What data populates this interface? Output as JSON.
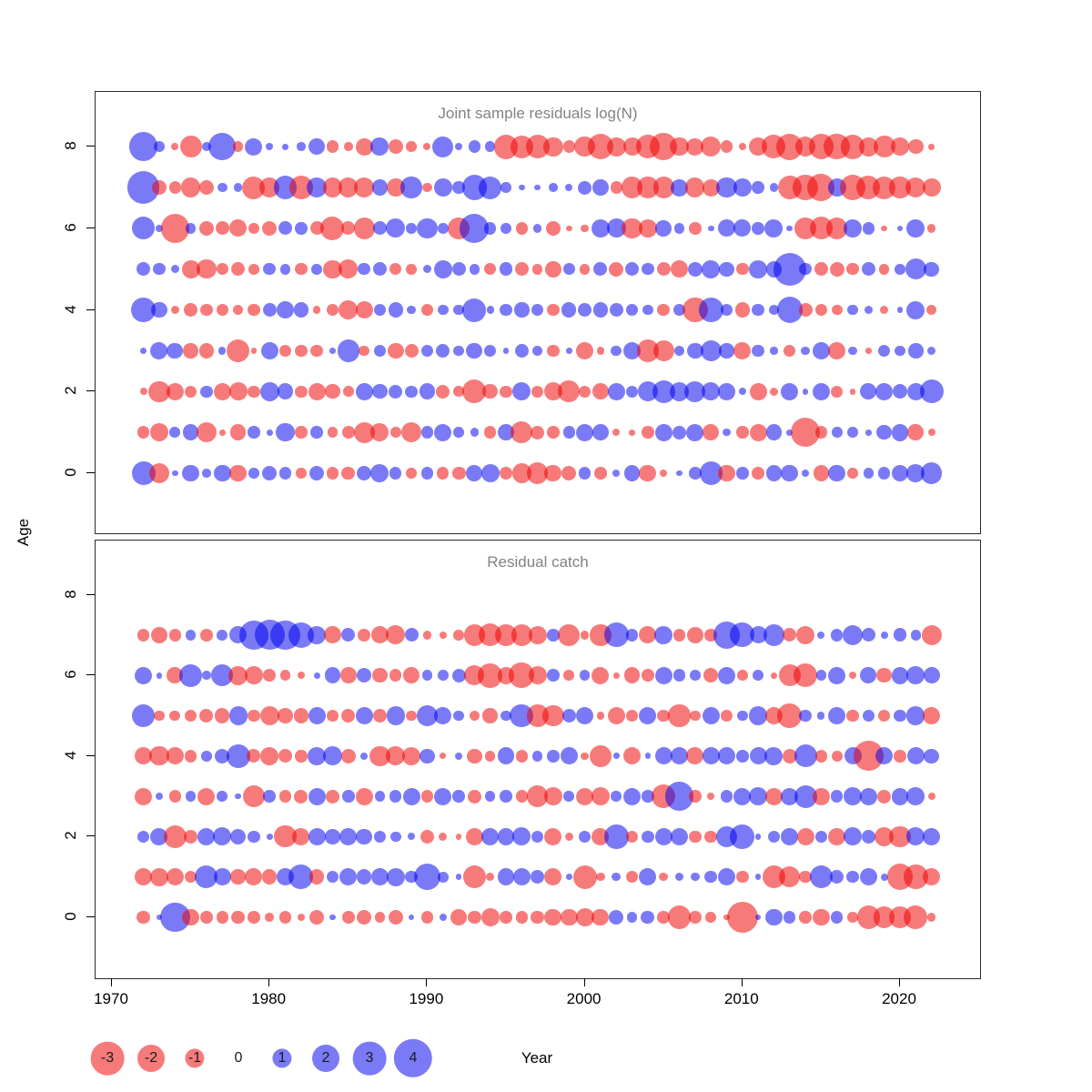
{
  "figure": {
    "ylabel": "Age",
    "xlabel": "Year"
  },
  "chart_data": {
    "type": "bubble",
    "xlabel": "Year",
    "ylabel": "Age",
    "x_ticks": [
      1970,
      1980,
      1990,
      2000,
      2010,
      2020
    ],
    "y_ticks": [
      0,
      2,
      4,
      6,
      8
    ],
    "xlim": [
      1969,
      2025
    ],
    "years_start": 1972,
    "years_end": 2022,
    "colors": {
      "negative": "rgba(240,0,0,0.52)",
      "positive": "rgba(0,0,240,0.52)",
      "negative_solid": "#f87b7b",
      "positive_solid": "#7b7bf8"
    },
    "legend": {
      "values": [
        -3,
        -2,
        -1,
        0,
        1,
        2,
        3,
        4
      ]
    },
    "panels": [
      {
        "title": "Joint sample residuals log(N)",
        "ages": [
          0,
          1,
          2,
          3,
          4,
          5,
          6,
          7,
          8
        ],
        "series": [
          {
            "age": 8,
            "values": [
              2.2,
              0.3,
              -0.15,
              -1.3,
              0.25,
              2.0,
              -0.3,
              0.8,
              0.15,
              0.1,
              0.2,
              0.7,
              -0.4,
              -0.2,
              -0.8,
              0.9,
              -0.6,
              -0.3,
              -0.15,
              1.2,
              0.15,
              0.4,
              0.3,
              -1.6,
              -1.4,
              -1.5,
              -1.0,
              -0.4,
              -1.1,
              -1.8,
              -1.0,
              -0.9,
              -1.5,
              -2.0,
              -0.9,
              -0.8,
              -1.1,
              -0.4,
              -0.15,
              -0.9,
              -1.5,
              -1.9,
              -1.1,
              -1.7,
              -1.8,
              -1.6,
              -1.0,
              -1.3,
              -0.9,
              -0.6,
              -0.1
            ]
          },
          {
            "age": 7,
            "values": [
              2.8,
              -0.6,
              -0.4,
              -1.0,
              -0.6,
              0.25,
              0.2,
              -1.4,
              -1.1,
              1.5,
              -1.5,
              1.1,
              -1.0,
              -1.0,
              -1.1,
              0.7,
              -0.9,
              1.2,
              -0.25,
              0.9,
              0.4,
              1.7,
              1.4,
              0.3,
              0.1,
              0.1,
              0.2,
              0.15,
              0.5,
              0.7,
              -0.4,
              -1.2,
              -1.3,
              -1.2,
              0.8,
              -1.0,
              -0.8,
              1.1,
              0.9,
              0.4,
              0.2,
              -1.5,
              -1.7,
              -2.0,
              0.9,
              -1.8,
              -1.5,
              -1.4,
              -1.2,
              -1.1,
              -0.9
            ]
          },
          {
            "age": 6,
            "values": [
              1.4,
              0.15,
              -2.2,
              0.3,
              -0.6,
              -0.5,
              -0.8,
              -0.3,
              -0.6,
              0.5,
              0.4,
              -0.5,
              -1.5,
              -0.5,
              -1.2,
              0.5,
              1.0,
              0.3,
              1.1,
              0.3,
              -1.3,
              2.3,
              0.4,
              0.3,
              -0.4,
              0.2,
              -0.6,
              -0.1,
              -0.15,
              0.9,
              1.0,
              -1.1,
              -0.9,
              0.7,
              0.3,
              -0.4,
              0.1,
              0.8,
              0.8,
              0.4,
              0.9,
              0.1,
              -1.3,
              -1.4,
              -1.2,
              0.9,
              0.4,
              -0.1,
              0.1,
              0.9,
              -0.2
            ]
          },
          {
            "age": 5,
            "values": [
              0.5,
              0.4,
              0.2,
              -0.9,
              -1.0,
              -0.4,
              -0.5,
              -0.3,
              0.4,
              0.3,
              -0.4,
              0.3,
              -0.9,
              -1.0,
              0.4,
              0.5,
              -0.4,
              -0.3,
              0.2,
              0.9,
              0.5,
              0.3,
              -0.4,
              0.5,
              -0.5,
              -0.3,
              -0.7,
              0.4,
              -0.3,
              0.5,
              -0.6,
              0.5,
              0.4,
              -0.5,
              -0.8,
              0.6,
              0.9,
              0.6,
              -0.4,
              0.9,
              0.7,
              2.9,
              0.4,
              -0.5,
              -0.6,
              -0.4,
              0.5,
              -0.3,
              0.3,
              1.2,
              0.6
            ]
          },
          {
            "age": 4,
            "values": [
              1.6,
              0.7,
              -0.2,
              -0.5,
              -0.4,
              -0.4,
              -0.3,
              -0.4,
              0.5,
              0.8,
              0.6,
              -0.15,
              -0.4,
              -1.0,
              -0.8,
              0.4,
              0.6,
              0.2,
              -0.4,
              0.3,
              0.3,
              1.5,
              0.15,
              0.4,
              0.6,
              0.4,
              -0.4,
              0.6,
              0.5,
              0.6,
              0.5,
              0.4,
              0.3,
              -0.4,
              0.4,
              -1.7,
              1.6,
              0.4,
              -0.6,
              0.4,
              0.3,
              1.8,
              -0.5,
              -0.4,
              -0.3,
              0.3,
              0.2,
              -0.2,
              0.1,
              0.9,
              -0.3
            ]
          },
          {
            "age": 3,
            "values": [
              0.1,
              0.8,
              0.7,
              -0.6,
              -0.6,
              0.15,
              -1.4,
              -0.1,
              0.8,
              -0.4,
              -0.4,
              -0.4,
              0.1,
              1.3,
              -0.3,
              0.4,
              -0.7,
              -0.5,
              0.4,
              0.5,
              0.3,
              0.7,
              0.4,
              0.1,
              0.5,
              0.3,
              -0.4,
              0.1,
              -0.8,
              -0.15,
              0.3,
              0.8,
              -1.3,
              -1.2,
              0.3,
              0.7,
              1.2,
              0.6,
              -0.8,
              0.4,
              0.15,
              -0.4,
              0.2,
              0.8,
              -0.8,
              0.2,
              -0.1,
              0.4,
              0.3,
              0.6,
              0.2
            ]
          },
          {
            "age": 2,
            "values": [
              -0.15,
              -1.2,
              -0.8,
              -0.4,
              0.4,
              -0.8,
              -0.9,
              -0.4,
              1.0,
              0.7,
              -0.4,
              -0.8,
              -0.6,
              -0.3,
              0.8,
              0.6,
              0.5,
              0.4,
              0.7,
              -0.5,
              -0.3,
              -1.5,
              -0.6,
              -0.4,
              0.9,
              -0.4,
              -0.9,
              -1.3,
              -0.4,
              -0.7,
              0.8,
              0.4,
              1.1,
              1.4,
              1.0,
              1.2,
              0.9,
              0.8,
              0.15,
              -0.8,
              -0.2,
              0.8,
              0.1,
              0.8,
              -0.4,
              -0.1,
              0.7,
              0.8,
              0.6,
              0.8,
              1.5
            ]
          },
          {
            "age": 1,
            "values": [
              -0.4,
              -0.9,
              0.3,
              0.7,
              -1.1,
              -0.1,
              -0.7,
              0.4,
              0.1,
              0.9,
              -0.4,
              0.4,
              -0.3,
              -0.4,
              -1.2,
              -0.9,
              -0.3,
              -1.1,
              0.4,
              0.8,
              0.3,
              0.2,
              -0.4,
              0.7,
              -1.3,
              -0.5,
              -0.4,
              0.4,
              0.8,
              0.7,
              -0.15,
              -0.1,
              -0.4,
              0.8,
              0.5,
              0.8,
              -0.7,
              0.15,
              -0.4,
              -0.8,
              0.7,
              0.1,
              -2.3,
              -0.4,
              0.3,
              0.3,
              0.1,
              0.6,
              0.8,
              -0.7,
              -0.15
            ]
          },
          {
            "age": 0,
            "values": [
              1.5,
              -1.1,
              0.1,
              0.8,
              0.2,
              0.8,
              -0.8,
              0.3,
              0.6,
              0.4,
              -0.3,
              0.6,
              -0.4,
              -0.5,
              0.6,
              0.9,
              0.4,
              -0.3,
              0.4,
              -0.4,
              -0.5,
              0.7,
              0.9,
              -0.5,
              -1.0,
              -1.2,
              -0.8,
              -0.6,
              0.4,
              -0.4,
              0.15,
              0.7,
              -0.8,
              -0.15,
              0.1,
              0.4,
              1.4,
              -0.8,
              0.4,
              -0.4,
              0.7,
              0.8,
              0.15,
              -0.7,
              0.8,
              -0.3,
              0.3,
              0.4,
              0.7,
              0.9,
              1.2
            ]
          }
        ]
      },
      {
        "title": "Residual catch",
        "ages": [
          0,
          1,
          2,
          3,
          4,
          5,
          6,
          7
        ],
        "series": [
          {
            "age": 7,
            "values": [
              -0.4,
              -0.7,
              -0.4,
              0.3,
              -0.4,
              0.3,
              0.8,
              2.2,
              2.4,
              2.3,
              1.8,
              0.9,
              -0.8,
              0.5,
              -0.4,
              -0.8,
              -1.0,
              0.5,
              -0.2,
              -0.15,
              -0.3,
              -1.2,
              -1.4,
              -1.3,
              -1.2,
              -0.9,
              0.4,
              -1.3,
              -0.2,
              -1.2,
              1.6,
              0.4,
              -0.8,
              0.9,
              -0.4,
              -0.7,
              -0.4,
              1.9,
              1.6,
              0.8,
              1.2,
              -0.5,
              -0.9,
              0.15,
              0.4,
              1.1,
              0.5,
              0.15,
              0.5,
              0.3,
              -1.1
            ]
          },
          {
            "age": 6,
            "values": [
              0.8,
              0.1,
              -0.7,
              1.4,
              0.2,
              1.3,
              -1.0,
              -0.9,
              -0.4,
              -0.3,
              -0.15,
              0.1,
              0.7,
              -0.7,
              0.6,
              -0.6,
              -0.4,
              -0.7,
              0.3,
              0.3,
              0.5,
              -1.1,
              -1.6,
              -0.8,
              -1.7,
              -0.9,
              0.4,
              -0.3,
              0.3,
              -0.8,
              -0.1,
              -0.7,
              -0.4,
              0.8,
              0.4,
              0.3,
              -0.6,
              0.8,
              -0.3,
              0.3,
              -0.1,
              -1.3,
              -1.5,
              0.3,
              0.8,
              -0.15,
              0.7,
              -0.6,
              0.8,
              0.9,
              0.7
            ]
          },
          {
            "age": 5,
            "values": [
              1.4,
              -0.3,
              -0.3,
              -0.4,
              -0.5,
              -0.6,
              0.9,
              -0.4,
              -1.0,
              -0.6,
              -0.6,
              0.8,
              -0.4,
              -0.5,
              0.8,
              -0.5,
              0.9,
              -0.3,
              1.2,
              0.8,
              0.3,
              -0.3,
              -0.6,
              0.3,
              1.5,
              -1.3,
              -1.2,
              0.5,
              0.8,
              -0.15,
              -0.8,
              -0.4,
              0.8,
              -0.4,
              -1.3,
              -0.3,
              0.8,
              -0.4,
              0.3,
              0.9,
              -0.8,
              -1.6,
              0.4,
              0.15,
              0.8,
              -0.4,
              0.4,
              -0.4,
              0.4,
              0.9,
              -0.8
            ]
          },
          {
            "age": 4,
            "values": [
              -0.8,
              -1.0,
              -0.8,
              -0.4,
              0.3,
              0.6,
              1.5,
              -0.5,
              -0.9,
              -0.5,
              -0.4,
              0.9,
              1.0,
              -0.6,
              0.15,
              -1.1,
              -1.0,
              -0.9,
              0.6,
              -0.1,
              0.15,
              -0.6,
              -0.3,
              0.8,
              -0.4,
              0.3,
              0.4,
              0.8,
              -0.15,
              -1.3,
              0.1,
              -0.8,
              0.1,
              0.8,
              0.8,
              -0.8,
              0.8,
              0.8,
              0.4,
              0.8,
              0.9,
              -0.6,
              1.4,
              -0.4,
              -0.3,
              0.8,
              -2.4,
              0.8,
              -0.4,
              0.8,
              0.6
            ]
          },
          {
            "age": 3,
            "values": [
              -0.8,
              0.15,
              -0.4,
              0.3,
              -0.8,
              0.3,
              0.1,
              -1.3,
              0.4,
              -0.4,
              -0.5,
              0.8,
              -0.5,
              0.4,
              -0.8,
              0.3,
              0.4,
              0.8,
              -0.4,
              0.8,
              0.4,
              -0.5,
              0.3,
              0.4,
              -0.4,
              -1.2,
              -0.9,
              0.3,
              -0.8,
              -0.9,
              0.3,
              0.8,
              0.4,
              -1.5,
              2.2,
              -0.4,
              -0.15,
              0.4,
              0.8,
              0.9,
              -0.8,
              0.8,
              1.4,
              -0.8,
              0.4,
              0.9,
              0.8,
              -0.5,
              0.8,
              0.9,
              -0.15
            ]
          },
          {
            "age": 2,
            "values": [
              0.4,
              0.8,
              -1.4,
              -0.5,
              0.8,
              0.9,
              0.7,
              0.4,
              0.1,
              -1.3,
              -0.8,
              0.8,
              0.6,
              0.8,
              0.7,
              0.4,
              0.3,
              0.15,
              -0.5,
              -0.2,
              -0.1,
              -0.8,
              0.8,
              0.8,
              0.9,
              0.4,
              -0.8,
              -0.2,
              0.4,
              -0.8,
              1.6,
              -0.4,
              0.4,
              0.8,
              0.8,
              -0.4,
              -0.4,
              1.2,
              1.6,
              0.1,
              0.4,
              0.8,
              -0.8,
              0.4,
              -0.8,
              0.9,
              0.5,
              -1.0,
              -1.2,
              0.9,
              0.8
            ]
          },
          {
            "age": 1,
            "values": [
              -0.8,
              -0.9,
              -0.8,
              -0.4,
              1.4,
              0.8,
              -0.6,
              -0.8,
              -0.6,
              0.8,
              1.6,
              -0.6,
              0.4,
              0.8,
              0.6,
              0.8,
              0.9,
              0.4,
              1.9,
              0.3,
              0.1,
              -1.4,
              -0.2,
              0.8,
              0.8,
              0.5,
              -0.8,
              0.1,
              -1.5,
              -0.2,
              0.2,
              -0.4,
              0.8,
              -0.2,
              0.2,
              0.2,
              0.4,
              0.8,
              -0.4,
              0.1,
              -1.4,
              -1.2,
              -0.4,
              1.4,
              0.5,
              0.4,
              0.8,
              0.15,
              -1.8,
              -1.6,
              -0.8
            ]
          },
          {
            "age": 0,
            "values": [
              -0.5,
              0.1,
              2.4,
              -0.8,
              -0.4,
              -0.4,
              -0.5,
              -0.4,
              -0.2,
              -0.4,
              -0.15,
              -0.6,
              0.1,
              -0.4,
              -0.6,
              -0.3,
              -0.6,
              0.1,
              -0.4,
              0.15,
              -0.7,
              -0.5,
              -0.9,
              -0.4,
              -0.4,
              -0.5,
              -0.8,
              -0.8,
              -0.9,
              -0.8,
              0.6,
              0.3,
              0.5,
              -0.4,
              -1.4,
              -0.4,
              -0.3,
              -0.1,
              -2.6,
              0.1,
              0.8,
              0.4,
              -0.4,
              -0.8,
              0.4,
              -0.3,
              -1.4,
              -1.2,
              -1.3,
              -1.5,
              -0.2
            ]
          }
        ]
      }
    ]
  }
}
